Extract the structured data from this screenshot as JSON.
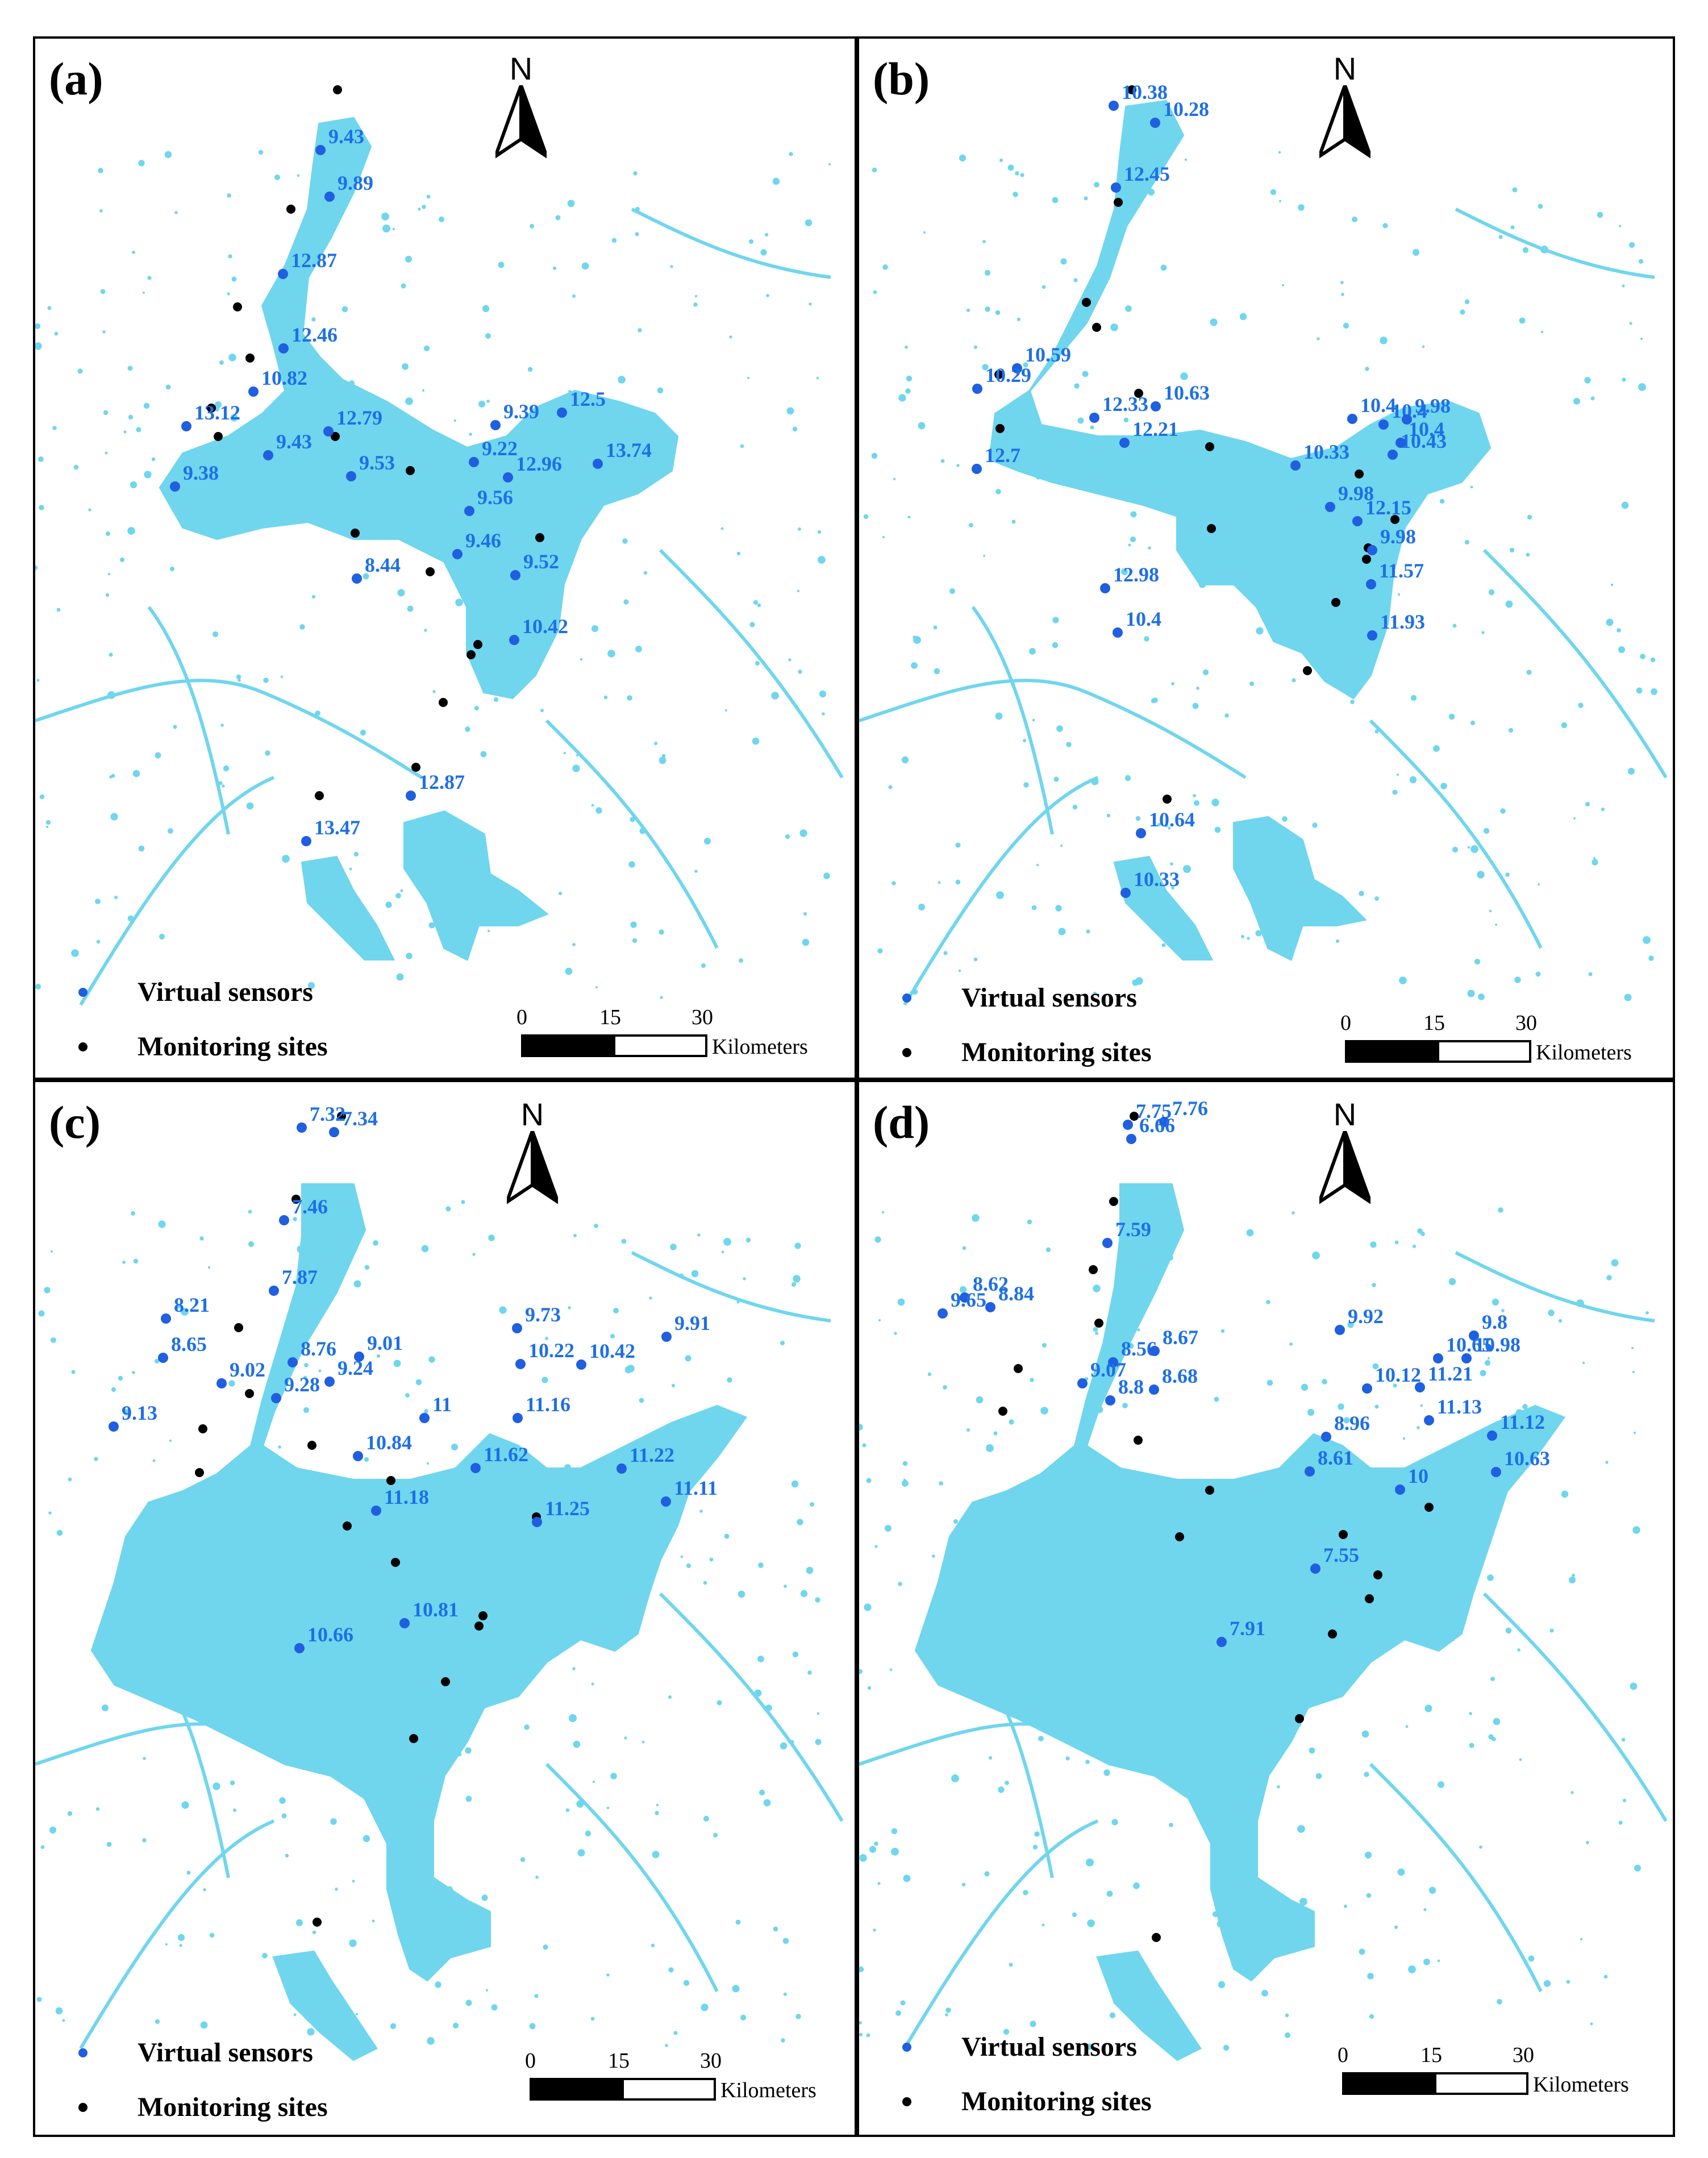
{
  "legend": {
    "virtual_sensors": "Virtual sensors",
    "monitoring_sites": "Monitoring sites",
    "virtual_color": "#1f5fe0",
    "monitoring_color": "#000000"
  },
  "north_arrow": {
    "label": "N"
  },
  "scale": {
    "ticks": [
      "0",
      "15",
      "30"
    ],
    "unit": "Kilometers"
  },
  "water_color": "#6fd6ee",
  "panels": [
    {
      "label": "(a)",
      "sensors": [
        {
          "v": "9.43"
        },
        {
          "v": "9.89"
        },
        {
          "v": "12.87"
        },
        {
          "v": "12.46"
        },
        {
          "v": "10.82"
        },
        {
          "v": "13.12"
        },
        {
          "v": "12.79"
        },
        {
          "v": "9.43"
        },
        {
          "v": "9.38"
        },
        {
          "v": "9.53"
        },
        {
          "v": "9.39"
        },
        {
          "v": "12.5"
        },
        {
          "v": "9.22"
        },
        {
          "v": "12.96"
        },
        {
          "v": "13.74"
        },
        {
          "v": "9.56"
        },
        {
          "v": "9.46"
        },
        {
          "v": "9.52"
        },
        {
          "v": "8.44"
        },
        {
          "v": "10.42"
        },
        {
          "v": "12.87"
        },
        {
          "v": "13.47"
        }
      ]
    },
    {
      "label": "(b)",
      "sensors": [
        {
          "v": "10.38"
        },
        {
          "v": "10.28"
        },
        {
          "v": "12.45"
        },
        {
          "v": "10.59"
        },
        {
          "v": "10.29"
        },
        {
          "v": "12.7"
        },
        {
          "v": "12.33"
        },
        {
          "v": "10.63"
        },
        {
          "v": "12.21"
        },
        {
          "v": "10.4"
        },
        {
          "v": "10.4"
        },
        {
          "v": "9.98"
        },
        {
          "v": "10.33"
        },
        {
          "v": "10.43"
        },
        {
          "v": "10.4"
        },
        {
          "v": "9.98"
        },
        {
          "v": "12.15"
        },
        {
          "v": "9.98"
        },
        {
          "v": "11.57"
        },
        {
          "v": "12.98"
        },
        {
          "v": "10.4"
        },
        {
          "v": "11.93"
        },
        {
          "v": "10.64"
        },
        {
          "v": "10.33"
        }
      ]
    },
    {
      "label": "(c)",
      "sensors": [
        {
          "v": "7.32"
        },
        {
          "v": "7.34"
        },
        {
          "v": "7.46"
        },
        {
          "v": "7.87"
        },
        {
          "v": "8.21"
        },
        {
          "v": "8.65"
        },
        {
          "v": "8.76"
        },
        {
          "v": "9.01"
        },
        {
          "v": "9.02"
        },
        {
          "v": "9.24"
        },
        {
          "v": "9.28"
        },
        {
          "v": "9.13"
        },
        {
          "v": "9.73"
        },
        {
          "v": "10.22"
        },
        {
          "v": "10.42"
        },
        {
          "v": "9.91"
        },
        {
          "v": "11"
        },
        {
          "v": "11.16"
        },
        {
          "v": "10.84"
        },
        {
          "v": "11.62"
        },
        {
          "v": "11.22"
        },
        {
          "v": "11.11"
        },
        {
          "v": "11.18"
        },
        {
          "v": "11.25"
        },
        {
          "v": "10.81"
        },
        {
          "v": "10.66"
        }
      ]
    },
    {
      "label": "(d)",
      "sensors": [
        {
          "v": "7.75"
        },
        {
          "v": "7.76"
        },
        {
          "v": "6.66"
        },
        {
          "v": "7.59"
        },
        {
          "v": "8.62"
        },
        {
          "v": "9.65"
        },
        {
          "v": "8.84"
        },
        {
          "v": "8.56"
        },
        {
          "v": "8.67"
        },
        {
          "v": "9.07"
        },
        {
          "v": "8.68"
        },
        {
          "v": "8.8"
        },
        {
          "v": "9.92"
        },
        {
          "v": "9.8"
        },
        {
          "v": "10.65"
        },
        {
          "v": "10.98"
        },
        {
          "v": "10.12"
        },
        {
          "v": "11.21"
        },
        {
          "v": "11.13"
        },
        {
          "v": "8.96"
        },
        {
          "v": "11.12"
        },
        {
          "v": "10.63"
        },
        {
          "v": "8.61"
        },
        {
          "v": "10"
        },
        {
          "v": "7.55"
        },
        {
          "v": "7.91"
        }
      ]
    }
  ]
}
